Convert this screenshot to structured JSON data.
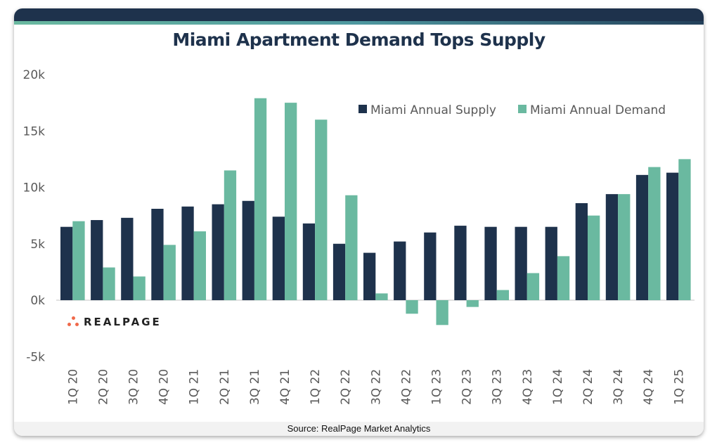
{
  "header": {
    "title": "Miami Apartment Demand Tops Supply"
  },
  "footer": {
    "source": "Source: RealPage Market Analytics"
  },
  "logo": {
    "text": "REALPAGE",
    "icon": "realpage-dots-logo-icon"
  },
  "colors": {
    "supply": "#1e324c",
    "demand": "#6ab9a0",
    "header": "#1e324c"
  },
  "chart_data": {
    "type": "bar",
    "title": "Miami Apartment Demand Tops Supply",
    "xlabel": "",
    "ylabel": "",
    "ylim": [
      -5000,
      20000
    ],
    "yticks": [
      -5000,
      0,
      5000,
      10000,
      15000,
      20000
    ],
    "ytick_labels": [
      "-5k",
      "0k",
      "5k",
      "10k",
      "15k",
      "20k"
    ],
    "grid": false,
    "legend_position": "top-right",
    "categories": [
      "1Q 20",
      "2Q 20",
      "3Q 20",
      "4Q 20",
      "1Q 21",
      "2Q 21",
      "3Q 21",
      "4Q 21",
      "1Q 22",
      "2Q 22",
      "3Q 22",
      "4Q 22",
      "1Q 23",
      "2Q 23",
      "3Q 23",
      "4Q 23",
      "1Q 24",
      "2Q 24",
      "3Q 24",
      "4Q 24",
      "1Q 25"
    ],
    "series": [
      {
        "name": "Miami Annual Supply",
        "color": "#1e324c",
        "values": [
          6500,
          7100,
          7300,
          8100,
          8300,
          8500,
          8800,
          7400,
          6800,
          5000,
          4200,
          5200,
          6000,
          6600,
          6500,
          6500,
          6500,
          8600,
          9400,
          11100,
          11300
        ]
      },
      {
        "name": "Miami Annual Demand",
        "color": "#6ab9a0",
        "values": [
          7000,
          2900,
          2100,
          4900,
          6100,
          11500,
          17900,
          17500,
          16000,
          9300,
          600,
          -1200,
          -2200,
          -600,
          900,
          2400,
          3900,
          7500,
          9400,
          11800,
          12500
        ]
      }
    ]
  }
}
